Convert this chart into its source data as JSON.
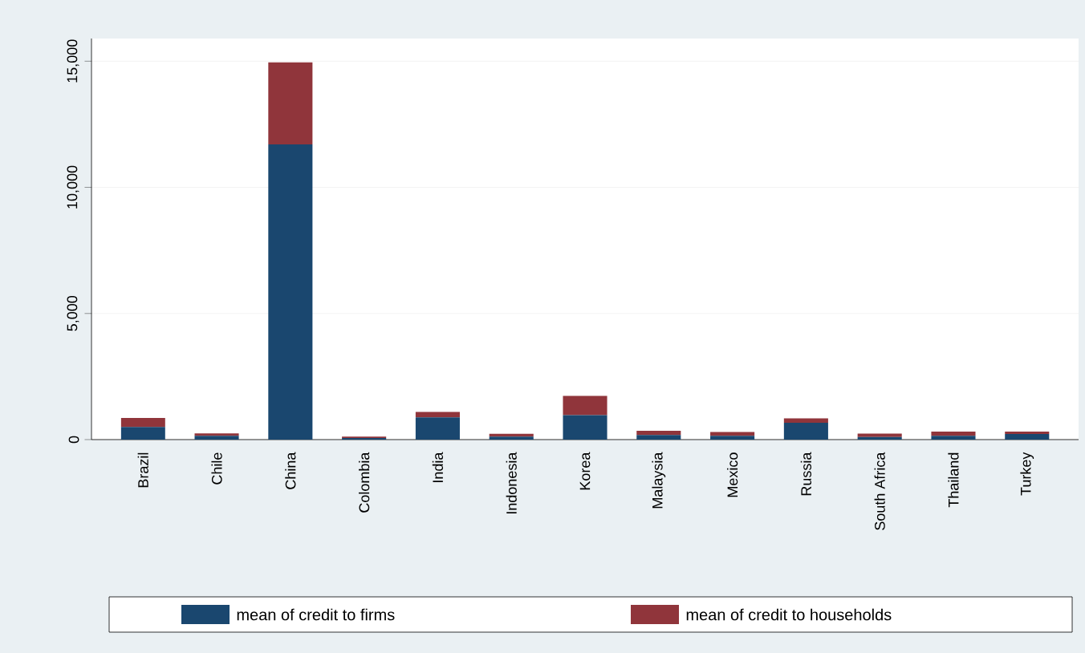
{
  "chart_data": {
    "type": "bar",
    "stacked": true,
    "categories": [
      "Brazil",
      "Chile",
      "China",
      "Colombia",
      "India",
      "Indonesia",
      "Korea",
      "Malaysia",
      "Mexico",
      "Russia",
      "South Africa",
      "Thailand",
      "Turkey"
    ],
    "series": [
      {
        "name": "mean of credit to firms",
        "color": "#1a476f",
        "values": [
          500,
          150,
          11700,
          60,
          880,
          120,
          970,
          180,
          150,
          670,
          100,
          150,
          220
        ]
      },
      {
        "name": "mean of credit to households",
        "color": "#90353b",
        "values": [
          360,
          100,
          3250,
          60,
          220,
          110,
          760,
          170,
          150,
          170,
          140,
          170,
          100
        ]
      }
    ],
    "ylim": [
      0,
      15900
    ],
    "yticks": [
      {
        "value": 0,
        "label": "0"
      },
      {
        "value": 5000,
        "label": "5,000"
      },
      {
        "value": 10000,
        "label": "10,000"
      },
      {
        "value": 15000,
        "label": "15,000"
      }
    ],
    "grid": "y",
    "legend": "bottom"
  }
}
